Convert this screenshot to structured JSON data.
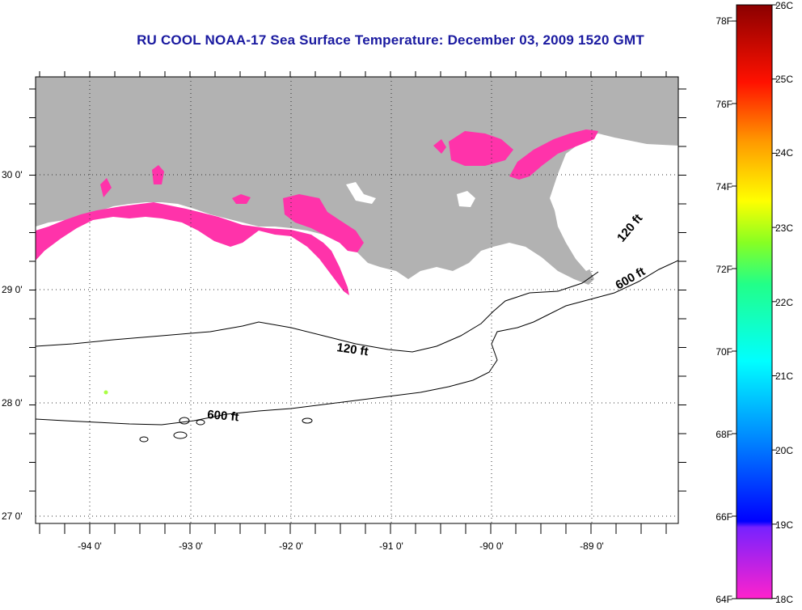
{
  "title": "RU COOL  NOAA-17  Sea Surface Temperature:  December 03, 2009 1520 GMT",
  "colors": {
    "land": "#b2b2b2",
    "water": "#ffffff",
    "cold_sst": "#ff33aa",
    "anomaly": "#aaff44",
    "title": "#1a1aa0"
  },
  "axes": {
    "lon_labels": [
      "-94 0'",
      "-93 0'",
      "-92 0'",
      "-91 0'",
      "-90 0'",
      "-89 0'"
    ],
    "lat_labels": [
      "30 0'",
      "29 0'",
      "28 0'",
      "27 0'"
    ]
  },
  "contours": {
    "c120_label": "120 ft",
    "c600_label": "600 ft",
    "c120_east_label": "120 ft",
    "c600_east_label": "600 ft"
  },
  "colorbar": {
    "f_labels": [
      "78F",
      "76F",
      "74F",
      "72F",
      "70F",
      "68F",
      "66F",
      "64F"
    ],
    "c_labels": [
      "26C",
      "25C",
      "24C",
      "23C",
      "22C",
      "21C",
      "20C",
      "19C",
      "18C"
    ]
  }
}
